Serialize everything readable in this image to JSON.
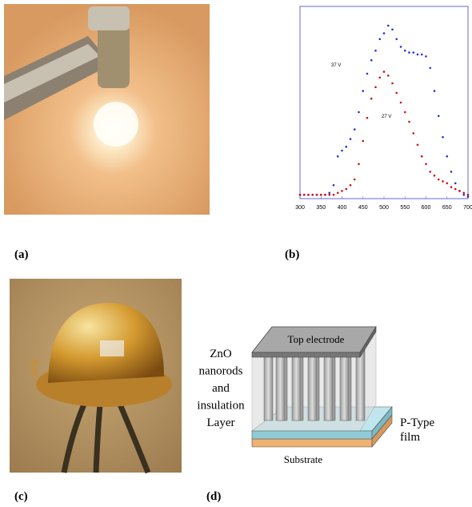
{
  "panel_labels": [
    "(a)",
    "(b)",
    "(c)",
    "(d)"
  ],
  "chart_data": {
    "type": "scatter",
    "x": [
      300,
      310,
      320,
      330,
      340,
      350,
      360,
      370,
      380,
      390,
      400,
      410,
      420,
      430,
      440,
      450,
      460,
      470,
      480,
      490,
      500,
      510,
      520,
      530,
      540,
      550,
      560,
      570,
      580,
      590,
      600,
      610,
      620,
      630,
      640,
      650,
      660,
      670,
      680,
      690,
      700
    ],
    "series": [
      {
        "name": "37 V",
        "color": "#2233dd",
        "values": [
          2,
          2,
          2,
          2,
          2,
          2,
          2,
          3,
          7,
          22,
          25,
          27,
          31,
          36,
          45,
          56,
          65,
          72,
          77,
          83,
          86,
          90,
          88,
          83,
          79,
          77,
          76,
          76,
          75,
          75,
          74,
          68,
          56,
          43,
          32,
          22,
          14,
          8,
          4,
          2,
          1
        ]
      },
      {
        "name": "27 V",
        "color": "#cc1111",
        "values": [
          2,
          2,
          2,
          2,
          2,
          2,
          2,
          2,
          2,
          3,
          4,
          5,
          7,
          10,
          18,
          30,
          42,
          52,
          58,
          63,
          66,
          64,
          60,
          55,
          50,
          45,
          40,
          34,
          28,
          22,
          18,
          14,
          12,
          10,
          9,
          8,
          6,
          5,
          4,
          3,
          2
        ]
      }
    ],
    "xlim": [
      300,
      700
    ],
    "xticks": [
      300,
      350,
      400,
      450,
      500,
      550,
      600,
      650,
      700
    ],
    "ylim": [
      0,
      100
    ]
  },
  "diagram": {
    "top": "Top electrode",
    "left": [
      "ZnO",
      "nanorods",
      "and",
      "insulation",
      "Layer"
    ],
    "right": [
      "P-Type",
      "film"
    ],
    "bottom": "Substrate"
  }
}
